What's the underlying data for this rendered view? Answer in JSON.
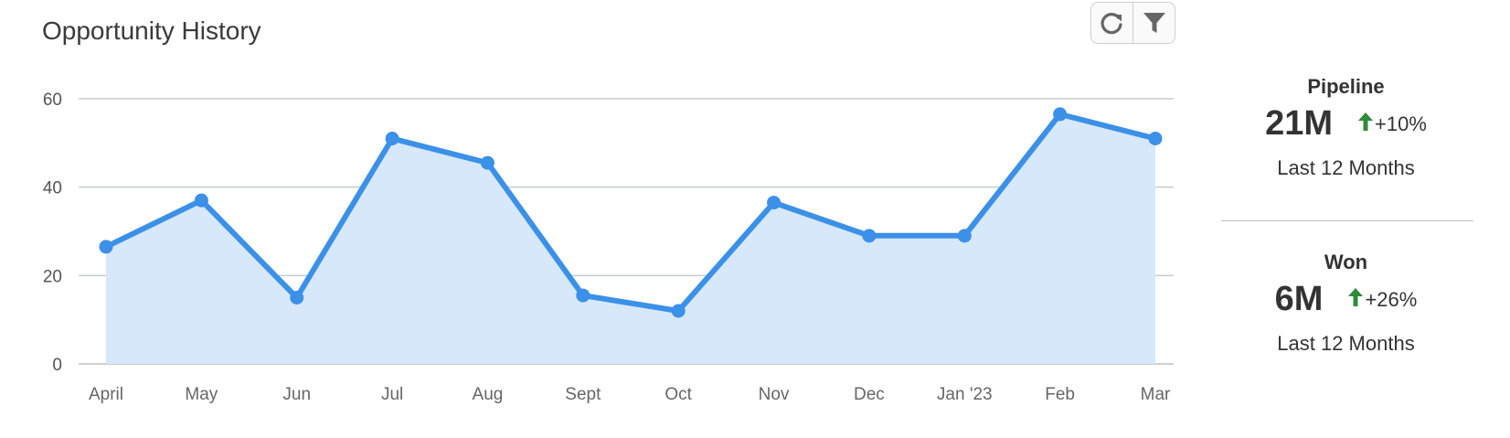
{
  "title": "Opportunity History",
  "toolbar": {
    "refresh_icon": "refresh-icon",
    "filter_icon": "filter-icon"
  },
  "chart_data": {
    "type": "area",
    "categories": [
      "April",
      "May",
      "Jun",
      "Jul",
      "Aug",
      "Sept",
      "Oct",
      "Nov",
      "Dec",
      "Jan '23",
      "Feb",
      "Mar"
    ],
    "values": [
      26.5,
      37,
      15,
      51,
      45.5,
      15.5,
      12,
      36.5,
      29,
      29,
      56.5,
      51
    ],
    "ylim": [
      0,
      60
    ],
    "yticks": [
      "0",
      "20",
      "40",
      "60"
    ],
    "grid": true,
    "line_color": "#3b90e8",
    "fill_color": "#d6e8f9"
  },
  "kpis": [
    {
      "label": "Pipeline",
      "value": "21M",
      "change": "+10%",
      "period": "Last 12 Months"
    },
    {
      "label": "Won",
      "value": "6M",
      "change": "+26%",
      "period": "Last 12 Months"
    }
  ],
  "up_color": "#2e8b3a"
}
